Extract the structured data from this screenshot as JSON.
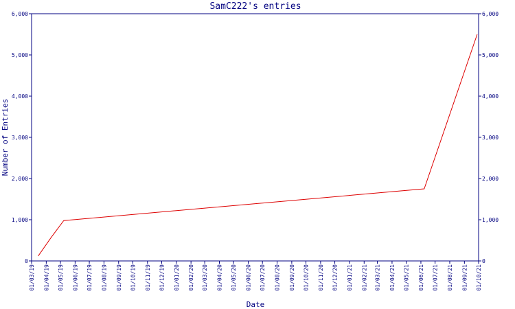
{
  "chart_data": {
    "type": "line",
    "title": "SamC222's entries",
    "x_label": "Date",
    "y_label": "Number of Entries",
    "axis_color": "#000080",
    "x": [
      "2019-03-15",
      "2019-04-12",
      "2019-05-08",
      "2021-06-08",
      "2021-09-28"
    ],
    "series": [
      {
        "name": "entries",
        "color": "#dd0000",
        "values": [
          120,
          580,
          980,
          1750,
          5500
        ]
      }
    ],
    "xlim": [
      "2019-03-01",
      "2021-10-01"
    ],
    "xticks": [
      {
        "value": "2019-03-01",
        "label": "01/03/19"
      },
      {
        "value": "2019-04-01",
        "label": "01/04/19"
      },
      {
        "value": "2019-05-01",
        "label": "01/05/19"
      },
      {
        "value": "2019-06-01",
        "label": "01/06/19"
      },
      {
        "value": "2019-07-01",
        "label": "01/07/19"
      },
      {
        "value": "2019-08-01",
        "label": "01/08/19"
      },
      {
        "value": "2019-09-01",
        "label": "01/09/19"
      },
      {
        "value": "2019-10-01",
        "label": "01/10/19"
      },
      {
        "value": "2019-11-01",
        "label": "01/11/19"
      },
      {
        "value": "2019-12-01",
        "label": "01/12/19"
      },
      {
        "value": "2020-01-01",
        "label": "01/01/20"
      },
      {
        "value": "2020-02-01",
        "label": "01/02/20"
      },
      {
        "value": "2020-03-01",
        "label": "01/03/20"
      },
      {
        "value": "2020-04-01",
        "label": "01/04/20"
      },
      {
        "value": "2020-05-01",
        "label": "01/05/20"
      },
      {
        "value": "2020-06-01",
        "label": "01/06/20"
      },
      {
        "value": "2020-07-01",
        "label": "01/07/20"
      },
      {
        "value": "2020-08-01",
        "label": "01/08/20"
      },
      {
        "value": "2020-09-01",
        "label": "01/09/20"
      },
      {
        "value": "2020-10-01",
        "label": "01/10/20"
      },
      {
        "value": "2020-11-01",
        "label": "01/11/20"
      },
      {
        "value": "2020-12-01",
        "label": "01/12/20"
      },
      {
        "value": "2021-01-01",
        "label": "01/01/21"
      },
      {
        "value": "2021-02-01",
        "label": "01/02/21"
      },
      {
        "value": "2021-03-01",
        "label": "01/03/21"
      },
      {
        "value": "2021-04-01",
        "label": "01/04/21"
      },
      {
        "value": "2021-05-01",
        "label": "01/05/21"
      },
      {
        "value": "2021-06-01",
        "label": "01/06/21"
      },
      {
        "value": "2021-07-01",
        "label": "01/07/21"
      },
      {
        "value": "2021-08-01",
        "label": "01/08/21"
      },
      {
        "value": "2021-09-01",
        "label": "01/09/21"
      },
      {
        "value": "2021-10-01",
        "label": "01/10/21"
      }
    ],
    "ylim": [
      0,
      6000
    ],
    "yticks": [
      0,
      {
        "value": 1000,
        "label": "1,000"
      },
      {
        "value": 2000,
        "label": "2,000"
      },
      {
        "value": 3000,
        "label": "3,000"
      },
      {
        "value": 4000,
        "label": "4,000"
      },
      {
        "value": 5000,
        "label": "5,000"
      },
      {
        "value": 6000,
        "label": "6,000"
      }
    ]
  }
}
